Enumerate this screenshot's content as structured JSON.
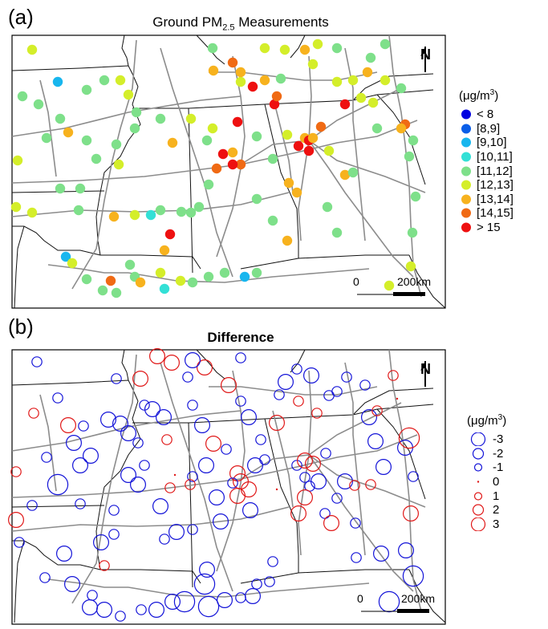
{
  "panel_a": {
    "letter": "(a)",
    "title_main": "Ground PM",
    "title_sub": "2.5",
    "title_tail": " Measurements",
    "legend": {
      "unit_prefix": "(μg/m",
      "unit_sup": "3",
      "unit_suffix": ")",
      "items": [
        {
          "label": "< 8",
          "color": "#0000e0"
        },
        {
          "label": "[8,9]",
          "color": "#0a5ee8"
        },
        {
          "label": "[9,10]",
          "color": "#18b6ee"
        },
        {
          "label": "[10,11]",
          "color": "#33e0d6"
        },
        {
          "label": "[11,12]",
          "color": "#7ee08a"
        },
        {
          "label": "[12,13]",
          "color": "#d4ee2a"
        },
        {
          "label": "[13,14]",
          "color": "#f7b21e"
        },
        {
          "label": "[14,15]",
          "color": "#f06a14"
        },
        {
          "label": "> 15",
          "color": "#ee1010"
        }
      ]
    },
    "scale": {
      "zero": "0",
      "end": "200km"
    },
    "north": "N"
  },
  "panel_b": {
    "letter": "(b)",
    "title": "Difference",
    "legend": {
      "unit_prefix": "(μg/m",
      "unit_sup": "3",
      "unit_suffix": ")",
      "items": [
        {
          "label": "-3",
          "magnitude": 3,
          "color": "#1414d8"
        },
        {
          "label": "-2",
          "magnitude": 2,
          "color": "#1414d8"
        },
        {
          "label": "-1",
          "magnitude": 1,
          "color": "#1414d8"
        },
        {
          "label": "0",
          "magnitude": 0,
          "color": "#e01818"
        },
        {
          "label": "1",
          "magnitude": 1,
          "color": "#e01818"
        },
        {
          "label": "2",
          "magnitude": 2,
          "color": "#e01818"
        },
        {
          "label": "3",
          "magnitude": 3,
          "color": "#e01818"
        }
      ]
    },
    "scale": {
      "zero": "0",
      "end": "200km"
    },
    "north": "N"
  },
  "stations_a": [
    [
      40,
      62,
      5
    ],
    [
      72,
      102,
      2
    ],
    [
      28,
      120,
      4
    ],
    [
      48,
      130,
      4
    ],
    [
      58,
      172,
      4
    ],
    [
      75,
      148,
      4
    ],
    [
      85,
      165,
      6
    ],
    [
      108,
      112,
      4
    ],
    [
      130,
      100,
      4
    ],
    [
      150,
      100,
      5
    ],
    [
      160,
      118,
      5
    ],
    [
      170,
      140,
      4
    ],
    [
      168,
      160,
      4
    ],
    [
      145,
      180,
      4
    ],
    [
      148,
      205,
      5
    ],
    [
      120,
      198,
      4
    ],
    [
      108,
      175,
      4
    ],
    [
      22,
      200,
      5
    ],
    [
      20,
      258,
      5
    ],
    [
      40,
      265,
      5
    ],
    [
      75,
      235,
      4
    ],
    [
      100,
      235,
      4
    ],
    [
      98,
      262,
      4
    ],
    [
      82,
      320,
      2
    ],
    [
      90,
      328,
      5
    ],
    [
      108,
      348,
      4
    ],
    [
      138,
      350,
      7
    ],
    [
      128,
      362,
      4
    ],
    [
      145,
      365,
      4
    ],
    [
      162,
      330,
      4
    ],
    [
      168,
      345,
      4
    ],
    [
      175,
      352,
      6
    ],
    [
      200,
      340,
      5
    ],
    [
      205,
      360,
      3
    ],
    [
      225,
      350,
      5
    ],
    [
      240,
      352,
      4
    ],
    [
      260,
      345,
      4
    ],
    [
      280,
      340,
      4
    ],
    [
      305,
      345,
      2
    ],
    [
      320,
      340,
      4
    ],
    [
      142,
      270,
      6
    ],
    [
      168,
      268,
      5
    ],
    [
      188,
      268,
      3
    ],
    [
      200,
      262,
      4
    ],
    [
      212,
      292,
      8
    ],
    [
      205,
      312,
      6
    ],
    [
      226,
      264,
      4
    ],
    [
      248,
      258,
      4
    ],
    [
      260,
      230,
      4
    ],
    [
      215,
      178,
      6
    ],
    [
      200,
      148,
      4
    ],
    [
      238,
      148,
      5
    ],
    [
      266,
      88,
      6
    ],
    [
      290,
      78,
      7
    ],
    [
      300,
      102,
      5
    ],
    [
      315,
      108,
      8
    ],
    [
      265,
      160,
      5
    ],
    [
      278,
      192,
      8
    ],
    [
      290,
      190,
      6
    ],
    [
      300,
      205,
      7
    ],
    [
      290,
      205,
      8
    ],
    [
      270,
      210,
      7
    ],
    [
      296,
      152,
      8
    ],
    [
      320,
      170,
      4
    ],
    [
      340,
      198,
      4
    ],
    [
      320,
      248,
      4
    ],
    [
      342,
      130,
      8
    ],
    [
      345,
      120,
      7
    ],
    [
      330,
      100,
      6
    ],
    [
      350,
      98,
      4
    ],
    [
      358,
      168,
      5
    ],
    [
      370,
      240,
      6
    ],
    [
      358,
      300,
      6
    ],
    [
      372,
      182,
      8
    ],
    [
      380,
      172,
      6
    ],
    [
      385,
      175,
      8
    ],
    [
      385,
      188,
      8
    ],
    [
      390,
      172,
      6
    ],
    [
      400,
      158,
      7
    ],
    [
      410,
      188,
      5
    ],
    [
      430,
      218,
      6
    ],
    [
      420,
      102,
      5
    ],
    [
      440,
      100,
      5
    ],
    [
      458,
      90,
      6
    ],
    [
      462,
      72,
      4
    ],
    [
      480,
      55,
      4
    ],
    [
      465,
      128,
      5
    ],
    [
      470,
      160,
      4
    ],
    [
      480,
      100,
      5
    ],
    [
      500,
      110,
      4
    ],
    [
      505,
      155,
      7
    ],
    [
      500,
      160,
      6
    ],
    [
      515,
      175,
      4
    ],
    [
      510,
      195,
      4
    ],
    [
      518,
      245,
      4
    ],
    [
      514,
      290,
      4
    ],
    [
      512,
      332,
      5
    ],
    [
      485,
      356,
      5
    ],
    [
      430,
      130,
      8
    ],
    [
      408,
      258,
      4
    ],
    [
      440,
      215,
      4
    ],
    [
      420,
      290,
      4
    ],
    [
      300,
      90,
      6
    ],
    [
      380,
      62,
      6
    ],
    [
      330,
      60,
      5
    ],
    [
      355,
      62,
      5
    ],
    [
      265,
      60,
      4
    ],
    [
      238,
      265,
      4
    ],
    [
      258,
      175,
      4
    ],
    [
      340,
      275,
      4
    ],
    [
      360,
      228,
      6
    ],
    [
      390,
      80,
      5
    ],
    [
      396,
      55,
      5
    ],
    [
      420,
      60,
      4
    ],
    [
      450,
      122,
      5
    ]
  ],
  "stations_b": [
    [
      46,
      451,
      -1
    ],
    [
      72,
      496,
      -1
    ],
    [
      42,
      515,
      1
    ],
    [
      85,
      530,
      2
    ],
    [
      104,
      531,
      -1
    ],
    [
      100,
      580,
      -2
    ],
    [
      113,
      568,
      -2
    ],
    [
      92,
      552,
      -2
    ],
    [
      58,
      570,
      -1
    ],
    [
      72,
      604,
      -3
    ],
    [
      100,
      628,
      -1
    ],
    [
      135,
      523,
      -2
    ],
    [
      150,
      528,
      -2
    ],
    [
      160,
      540,
      -2
    ],
    [
      172,
      552,
      -1
    ],
    [
      172,
      604,
      -2
    ],
    [
      142,
      636,
      -1
    ],
    [
      142,
      666,
      -1
    ],
    [
      126,
      676,
      -2
    ],
    [
      80,
      690,
      -2
    ],
    [
      90,
      728,
      -2
    ],
    [
      112,
      757,
      -2
    ],
    [
      130,
      760,
      -2
    ],
    [
      150,
      768,
      -1
    ],
    [
      176,
      760,
      -1
    ],
    [
      195,
      760,
      -2
    ],
    [
      215,
      750,
      -2
    ],
    [
      230,
      750,
      -3
    ],
    [
      255,
      728,
      -3
    ],
    [
      260,
      756,
      -3
    ],
    [
      280,
      748,
      -2
    ],
    [
      300,
      745,
      -1
    ],
    [
      315,
      743,
      -2
    ],
    [
      320,
      728,
      -1
    ],
    [
      336,
      725,
      -1
    ],
    [
      145,
      472,
      -1
    ],
    [
      175,
      472,
      2
    ],
    [
      214,
      452,
      2
    ],
    [
      255,
      458,
      2
    ],
    [
      285,
      480,
      2
    ],
    [
      300,
      500,
      -1
    ],
    [
      310,
      520,
      -2
    ],
    [
      345,
      527,
      2
    ],
    [
      348,
      492,
      -1
    ],
    [
      356,
      476,
      -2
    ],
    [
      370,
      460,
      -1
    ],
    [
      388,
      468,
      -2
    ],
    [
      410,
      493,
      -1
    ],
    [
      420,
      488,
      -1
    ],
    [
      432,
      470,
      -1
    ],
    [
      455,
      480,
      -1
    ],
    [
      460,
      520,
      -2
    ],
    [
      468,
      550,
      -2
    ],
    [
      478,
      582,
      -2
    ],
    [
      505,
      558,
      -2
    ],
    [
      510,
      546,
      3
    ],
    [
      515,
      594,
      -1
    ],
    [
      512,
      640,
      2
    ],
    [
      506,
      686,
      -2
    ],
    [
      515,
      718,
      -3
    ],
    [
      485,
      750,
      -3
    ],
    [
      372,
      640,
      2
    ],
    [
      370,
      580,
      -1
    ],
    [
      380,
      574,
      2
    ],
    [
      390,
      578,
      2
    ],
    [
      380,
      595,
      -1
    ],
    [
      386,
      606,
      -1
    ],
    [
      397,
      600,
      -2
    ],
    [
      406,
      565,
      -1
    ],
    [
      405,
      640,
      -1
    ],
    [
      420,
      621,
      -1
    ],
    [
      430,
      600,
      -2
    ],
    [
      443,
      652,
      -1
    ],
    [
      475,
      690,
      -2
    ],
    [
      444,
      695,
      -1
    ],
    [
      266,
      553,
      2
    ],
    [
      282,
      560,
      -1
    ],
    [
      296,
      590,
      2
    ],
    [
      300,
      600,
      2
    ],
    [
      290,
      602,
      -1
    ],
    [
      296,
      618,
      2
    ],
    [
      310,
      610,
      2
    ],
    [
      318,
      580,
      -2
    ],
    [
      330,
      573,
      -1
    ],
    [
      325,
      548,
      -1
    ],
    [
      312,
      636,
      -2
    ],
    [
      270,
      620,
      -2
    ],
    [
      275,
      650,
      -2
    ],
    [
      240,
      660,
      -1
    ],
    [
      220,
      663,
      -2
    ],
    [
      205,
      672,
      -1
    ],
    [
      240,
      594,
      -1
    ],
    [
      257,
      580,
      -2
    ],
    [
      252,
      530,
      -2
    ],
    [
      240,
      505,
      -1
    ],
    [
      234,
      470,
      -1
    ],
    [
      180,
      505,
      -1
    ],
    [
      190,
      510,
      -2
    ],
    [
      204,
      520,
      -2
    ],
    [
      180,
      580,
      -1
    ],
    [
      160,
      592,
      -2
    ],
    [
      200,
      631,
      -2
    ],
    [
      212,
      608,
      1
    ],
    [
      218,
      592,
      0
    ],
    [
      208,
      548,
      1
    ],
    [
      237,
      604,
      1
    ],
    [
      258,
      710,
      -2
    ],
    [
      340,
      700,
      -1
    ],
    [
      345,
      610,
      0
    ],
    [
      380,
      620,
      2
    ],
    [
      395,
      515,
      1
    ],
    [
      300,
      446,
      -1
    ],
    [
      240,
      449,
      -2
    ],
    [
      196,
      444,
      2
    ],
    [
      130,
      705,
      1
    ],
    [
      115,
      742,
      -1
    ],
    [
      40,
      630,
      -1
    ],
    [
      20,
      648,
      2
    ],
    [
      20,
      588,
      1
    ],
    [
      24,
      676,
      -1
    ],
    [
      56,
      720,
      -1
    ],
    [
      470,
      512,
      1
    ],
    [
      490,
      468,
      1
    ],
    [
      495,
      497,
      0
    ],
    [
      413,
      652,
      2
    ],
    [
      372,
      500,
      1
    ],
    [
      462,
      604,
      1
    ],
    [
      442,
      605,
      1
    ]
  ]
}
